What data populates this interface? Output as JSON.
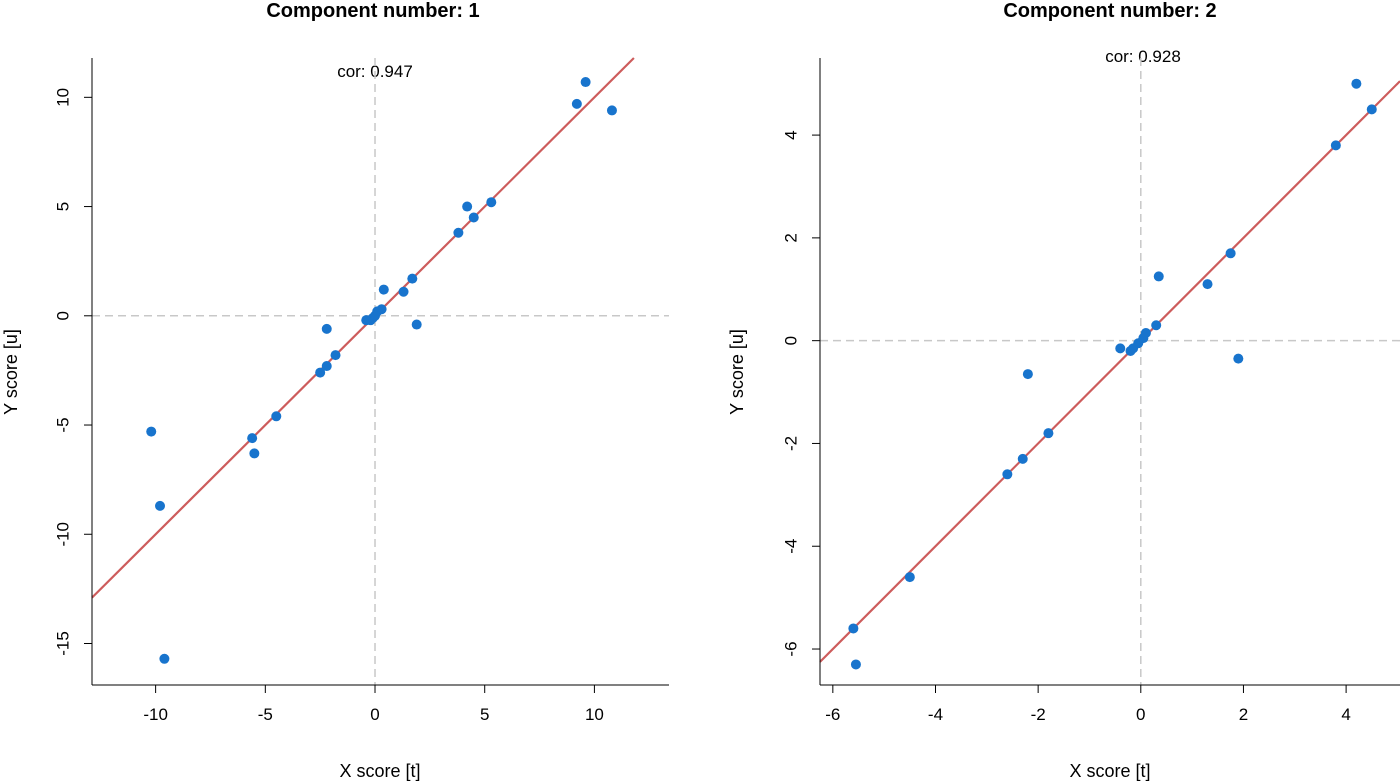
{
  "colors": {
    "points": "#1874CD",
    "fit_line": "#CD5C5C",
    "ref_lines": "#C8C8C8"
  },
  "chart_data": [
    {
      "type": "scatter",
      "title": "Component number: 1",
      "xlabel": "X score [t]",
      "ylabel": "Y score [u]",
      "annotation": "cor: 0.947",
      "xlim": [
        -12.9,
        13.4
      ],
      "ylim": [
        -16.9,
        11.8
      ],
      "xticks": [
        -10,
        -5,
        0,
        5,
        10
      ],
      "xtick_labels": [
        "-10",
        "-5",
        "0",
        "5",
        "10"
      ],
      "yticks": [
        -15,
        -10,
        -5,
        0,
        5,
        10
      ],
      "ytick_labels": [
        "-15",
        "-10",
        "-5",
        "0",
        "5",
        "10"
      ],
      "fit_line": {
        "slope": 1.0,
        "intercept": 0.0
      },
      "reference_lines": {
        "x": 0,
        "y": 0
      },
      "x": [
        -10.2,
        -9.8,
        -9.6,
        -5.6,
        -5.5,
        -4.5,
        -2.5,
        -2.2,
        -2.2,
        -1.8,
        -0.4,
        -0.2,
        -0.1,
        0.0,
        0.1,
        0.3,
        0.4,
        1.3,
        1.7,
        1.9,
        3.8,
        4.2,
        4.5,
        5.3,
        9.2,
        9.6,
        10.8
      ],
      "y": [
        -5.3,
        -8.7,
        -15.7,
        -5.6,
        -6.3,
        -4.6,
        -2.6,
        -2.3,
        -0.6,
        -1.8,
        -0.2,
        -0.2,
        -0.1,
        0.0,
        0.2,
        0.3,
        1.2,
        1.1,
        1.7,
        -0.4,
        3.8,
        5.0,
        4.5,
        5.2,
        9.7,
        10.7,
        9.4
      ]
    },
    {
      "type": "scatter",
      "title": "Component number: 2",
      "xlabel": "X score [t]",
      "ylabel": "Y score [u]",
      "annotation": "cor: 0.928",
      "xlim": [
        -6.25,
        5.05
      ],
      "ylim": [
        -6.7,
        5.5
      ],
      "xticks": [
        -6,
        -4,
        -2,
        0,
        2,
        4
      ],
      "xtick_labels": [
        "-6",
        "-4",
        "-2",
        "0",
        "2",
        "4"
      ],
      "yticks": [
        -6,
        -4,
        -2,
        0,
        2,
        4
      ],
      "ytick_labels": [
        "-6",
        "-4",
        "-2",
        "0",
        "2",
        "4"
      ],
      "fit_line": {
        "slope": 1.0,
        "intercept": 0.0
      },
      "reference_lines": {
        "x": 0,
        "y": 0
      },
      "x": [
        -5.6,
        -5.55,
        -4.5,
        -2.6,
        -2.3,
        -2.2,
        -1.8,
        -0.4,
        -0.2,
        -0.15,
        -0.05,
        0.05,
        0.1,
        0.3,
        0.35,
        1.3,
        1.75,
        1.9,
        3.8,
        4.2,
        4.5
      ],
      "y": [
        -5.6,
        -6.3,
        -4.6,
        -2.6,
        -2.3,
        -0.65,
        -1.8,
        -0.15,
        -0.2,
        -0.15,
        -0.05,
        0.05,
        0.15,
        0.3,
        1.25,
        1.1,
        1.7,
        -0.35,
        3.8,
        5.0,
        4.5
      ]
    }
  ]
}
